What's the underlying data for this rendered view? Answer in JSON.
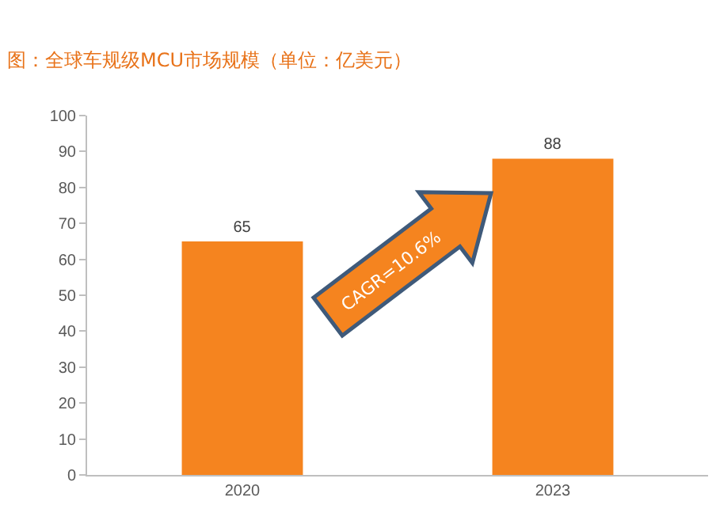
{
  "chart_data": {
    "type": "bar",
    "title": "图：全球车规级MCU市场规模（单位：亿美元）",
    "categories": [
      "2020",
      "2023"
    ],
    "values": [
      65,
      88
    ],
    "color": "#f5841f",
    "ylim": [
      0,
      100
    ],
    "yticks": [
      0,
      10,
      20,
      30,
      40,
      50,
      60,
      70,
      80,
      90,
      100
    ],
    "data_labels": true,
    "annotations": [
      "CAGR=10.6%"
    ]
  }
}
